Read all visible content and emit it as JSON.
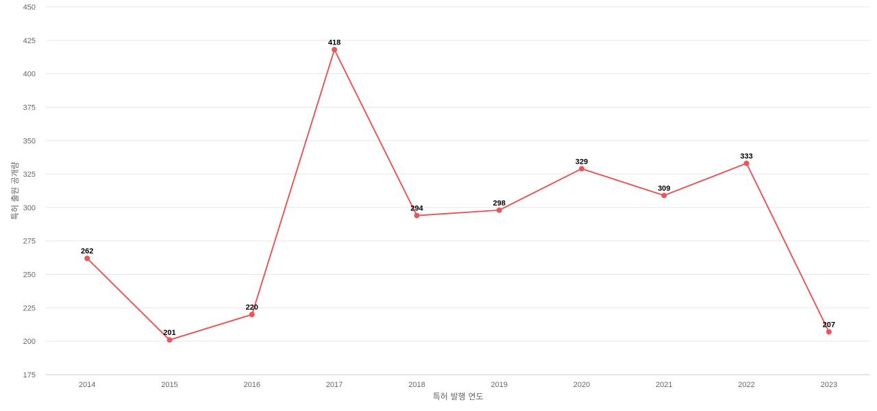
{
  "chart_data": {
    "type": "line",
    "title": "",
    "xlabel": "특허 발행 연도",
    "ylabel": "특허 출원 공개량",
    "categories": [
      "2014",
      "2015",
      "2016",
      "2017",
      "2018",
      "2019",
      "2020",
      "2021",
      "2022",
      "2023"
    ],
    "series": [
      {
        "values": [
          262,
          201,
          220,
          418,
          294,
          298,
          329,
          309,
          333,
          207
        ],
        "color": "#e8585a"
      }
    ],
    "ylim": [
      175,
      450
    ],
    "yticks": [
      "175",
      "200",
      "225",
      "250",
      "275",
      "300",
      "325",
      "350",
      "375",
      "400",
      "425",
      "450"
    ],
    "grid": true,
    "data_labels": true
  }
}
